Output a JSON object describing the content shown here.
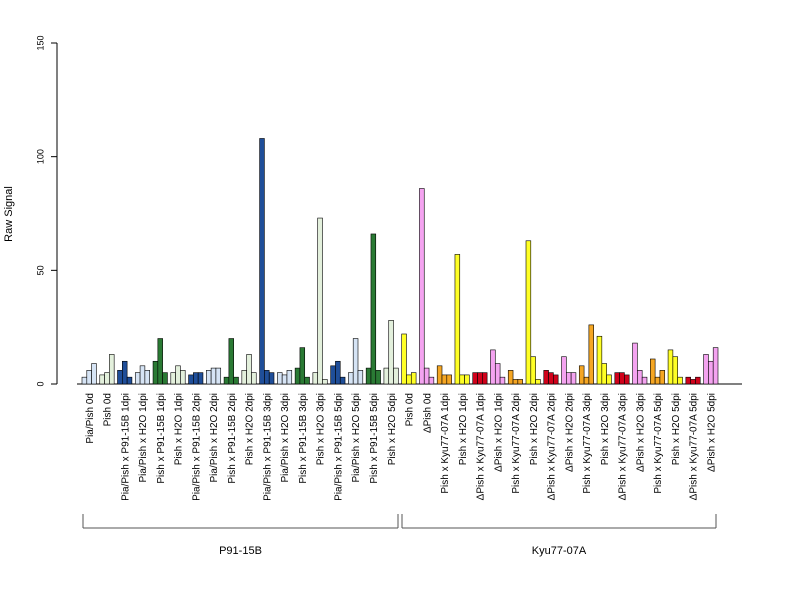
{
  "chart_data": {
    "type": "bar",
    "title": "",
    "xlabel": "",
    "ylabel": "Raw Signal",
    "ylim": [
      0,
      150
    ],
    "yticks": [
      0,
      50,
      100,
      150
    ],
    "grid": false,
    "legend": "none",
    "categories": [
      "Pia/Pish 0d",
      "Pish 0d",
      "Pia/Pish x P91-15B 1dpi",
      "Pia/Pish x H2O 1dpi",
      "Pish x P91-15B 1dpi",
      "Pish x H2O 1dpi",
      "Pia/Pish x P91-15B 2dpi",
      "Pia/Pish x H2O 2dpi",
      "Pish x P91-15B 2dpi",
      "Pish x H2O 2dpi",
      "Pia/Pish x P91-15B 3dpi",
      "Pia/Pish x H2O 3dpi",
      "Pish x P91-15B 3dpi",
      "Pish x H2O 3dpi",
      "Pia/Pish x P91-15B 5dpi",
      "Pia/Pish x H2O 5dpi",
      "Pish x P91-15B 5dpi",
      "Pish x H2O 5dpi",
      "Pish 0d",
      "ΔPish 0d",
      "Pish x Kyu77-07A 1dpi",
      "Pish x H2O 1dpi",
      "ΔPish x Kyu77-07A 1dpi",
      "ΔPish x H2O 1dpi",
      "Pish x Kyu77-07A 2dpi",
      "Pish x H2O 2dpi",
      "ΔPish x Kyu77-07A 2dpi",
      "ΔPish x H2O 2dpi",
      "Pish x Kyu77-07A 3dpi",
      "Pish x H2O 3dpi",
      "ΔPish x Kyu77-07A 3dpi",
      "ΔPish x H2O 3dpi",
      "Pish x Kyu77-07A 5dpi",
      "Pish x H2O 5dpi",
      "ΔPish x Kyu77-07A 5dpi",
      "ΔPish x H2O 5dpi"
    ],
    "replicates_per_group": 3,
    "group_colors": [
      "#d6e4f5",
      "#e3f0dc",
      "#1f4e99",
      "#d6e4f5",
      "#2a7a34",
      "#e3f0dc",
      "#1f4e99",
      "#d6e4f5",
      "#2a7a34",
      "#e3f0dc",
      "#1f4e99",
      "#d6e4f5",
      "#2a7a34",
      "#e3f0dc",
      "#1f4e99",
      "#d6e4f5",
      "#2a7a34",
      "#e3f0dc",
      "#ffff26",
      "#f4a3f0",
      "#f5a623",
      "#ffff26",
      "#d0021b",
      "#f4a3f0",
      "#f5a623",
      "#ffff26",
      "#d0021b",
      "#f4a3f0",
      "#f5a623",
      "#ffff26",
      "#d0021b",
      "#f4a3f0",
      "#f5a623",
      "#ffff26",
      "#d0021b",
      "#f4a3f0"
    ],
    "values": [
      [
        3,
        6,
        9
      ],
      [
        4,
        5,
        13
      ],
      [
        6,
        10,
        3
      ],
      [
        5,
        8,
        6
      ],
      [
        10,
        20,
        5
      ],
      [
        5,
        8,
        6
      ],
      [
        4,
        5,
        5
      ],
      [
        6,
        7,
        7
      ],
      [
        3,
        20,
        3
      ],
      [
        6,
        13,
        5
      ],
      [
        108,
        6,
        5
      ],
      [
        5,
        4,
        6
      ],
      [
        7,
        16,
        3
      ],
      [
        5,
        73,
        2
      ],
      [
        8,
        10,
        3
      ],
      [
        5,
        20,
        6
      ],
      [
        7,
        66,
        6
      ],
      [
        7,
        28,
        7
      ],
      [
        22,
        4,
        5
      ],
      [
        86,
        7,
        3
      ],
      [
        8,
        4,
        4
      ],
      [
        57,
        4,
        4
      ],
      [
        5,
        5,
        5
      ],
      [
        15,
        9,
        3
      ],
      [
        6,
        2,
        2
      ],
      [
        63,
        12,
        2
      ],
      [
        6,
        5,
        4
      ],
      [
        12,
        5,
        5
      ],
      [
        8,
        3,
        26
      ],
      [
        21,
        9,
        4
      ],
      [
        5,
        5,
        4
      ],
      [
        18,
        6,
        3
      ],
      [
        11,
        3,
        6
      ],
      [
        15,
        12,
        3
      ],
      [
        3,
        2,
        3
      ],
      [
        13,
        10,
        16
      ]
    ],
    "brackets": [
      {
        "label": "P91-15B",
        "from": 0,
        "to": 17
      },
      {
        "label": "Kyu77-07A",
        "from": 18,
        "to": 35
      }
    ]
  }
}
